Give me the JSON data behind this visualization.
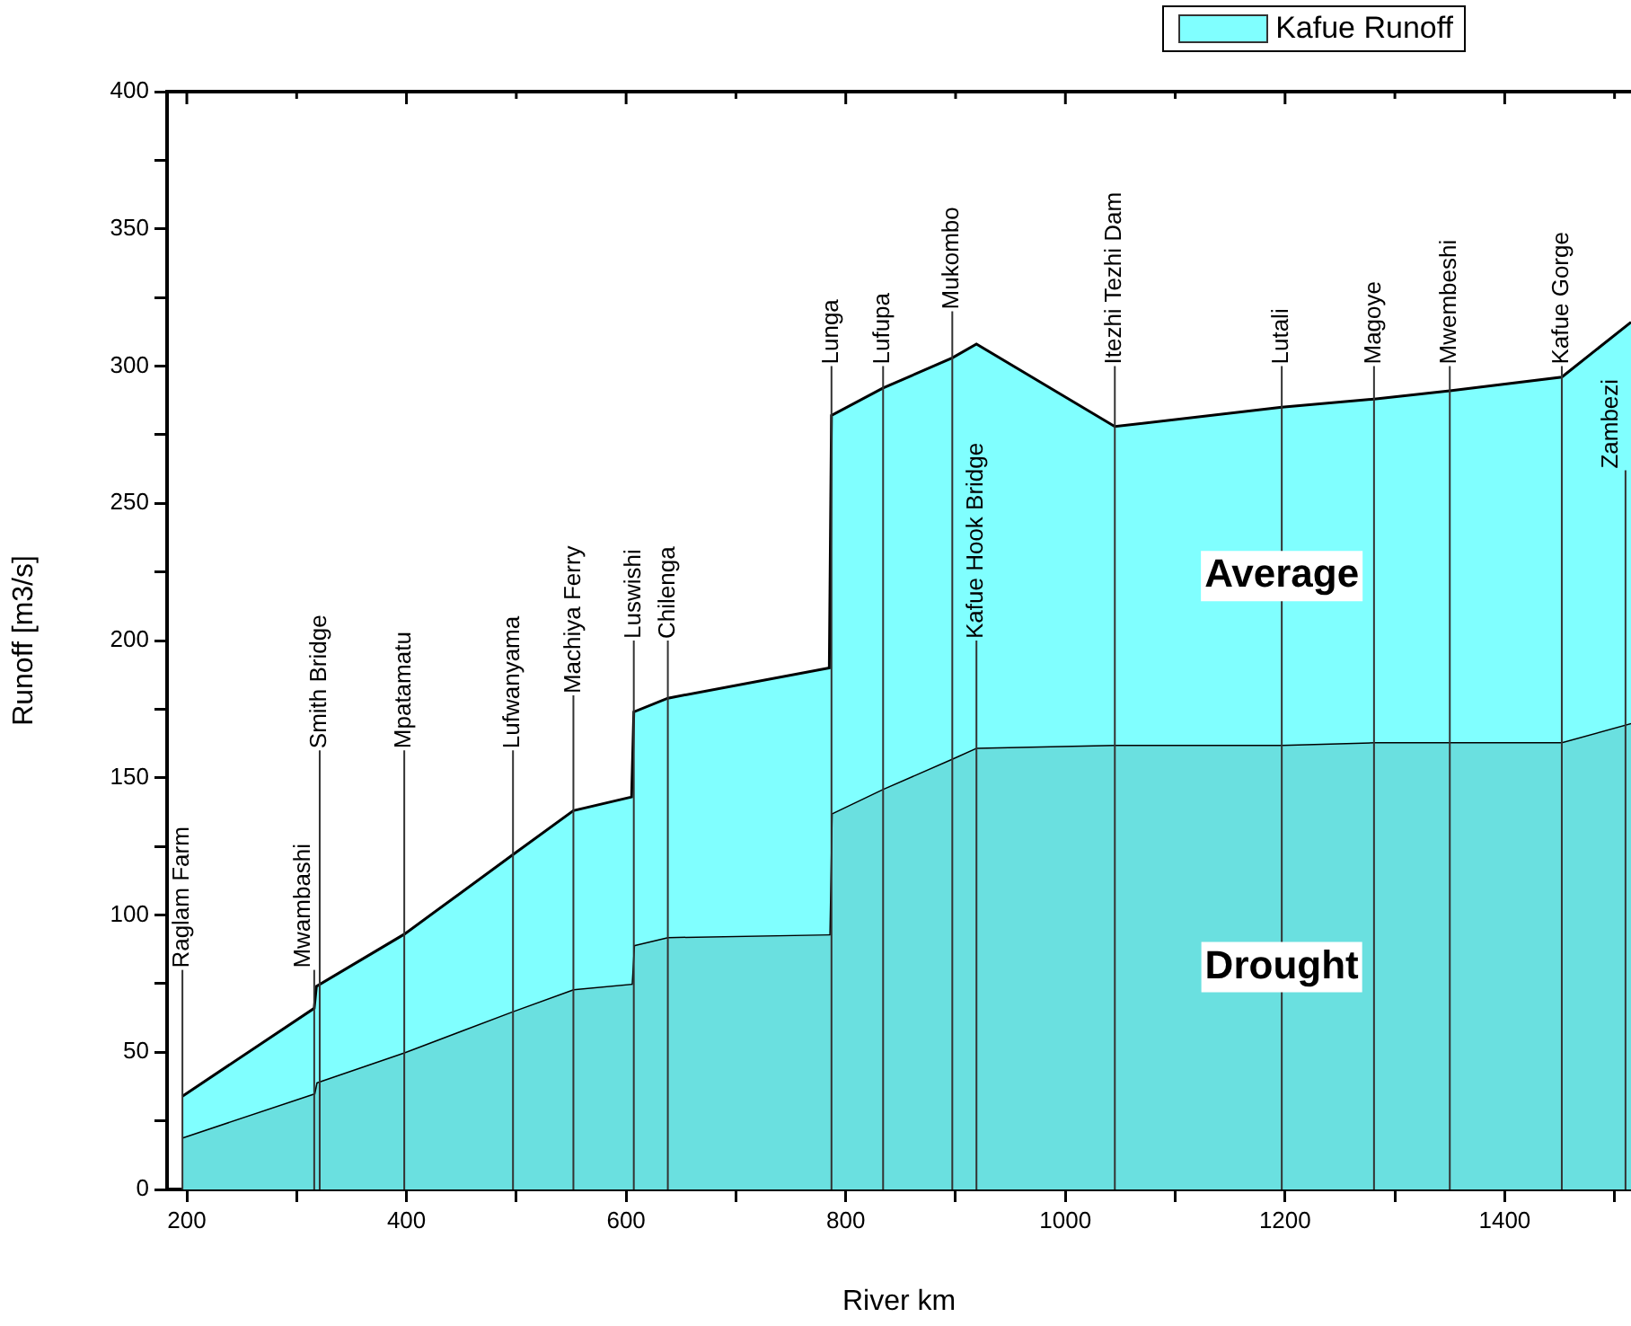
{
  "chart_data": {
    "type": "area",
    "xlabel": "River km",
    "ylabel": "Runoff [m3/s]",
    "legend_title": "Kafue Runoff",
    "legend": "top right",
    "x": [
      196,
      316,
      318,
      398,
      497,
      552,
      605,
      607,
      638,
      785,
      787,
      834,
      897,
      919,
      1045,
      1197,
      1281,
      1350,
      1452,
      1515
    ],
    "series": [
      {
        "name": "Average",
        "color": "#80ffff",
        "values": [
          34,
          66,
          74,
          93,
          122,
          138,
          143,
          174,
          179,
          190,
          282,
          292,
          303,
          308,
          278,
          285,
          288,
          291,
          296,
          316
        ]
      },
      {
        "name": "Drought",
        "color": "#6ae0e0",
        "values": [
          19,
          35,
          39,
          50,
          65,
          73,
          75,
          89,
          92,
          93,
          137,
          146,
          157,
          161,
          162,
          162,
          163,
          163,
          163,
          170
        ]
      }
    ],
    "xlim": [
      182,
      1515
    ],
    "xticks": [
      200,
      {
        "value": 300,
        "label": null
      },
      400,
      {
        "value": 500,
        "label": null
      },
      600,
      {
        "value": 700,
        "label": null
      },
      800,
      {
        "value": 900,
        "label": null
      },
      1000,
      {
        "value": 1100,
        "label": null
      },
      1200,
      {
        "value": 1300,
        "label": null
      },
      1400,
      {
        "value": 1500,
        "label": null
      }
    ],
    "ylim": [
      0,
      400
    ],
    "yticks": [
      0,
      {
        "value": 25,
        "label": null
      },
      50,
      {
        "value": 75,
        "label": null
      },
      100,
      {
        "value": 125,
        "label": null
      },
      150,
      {
        "value": 175,
        "label": null
      },
      200,
      {
        "value": 225,
        "label": null
      },
      250,
      {
        "value": 275,
        "label": null
      },
      300,
      {
        "value": 325,
        "label": null
      },
      350,
      {
        "value": 375,
        "label": null
      },
      400
    ],
    "ref_lines": [
      {
        "axis": "x",
        "value": 196,
        "label": "Raglam Farm"
      },
      {
        "axis": "x",
        "value": 316,
        "label": "Mwambashi"
      },
      {
        "axis": "x",
        "value": 321,
        "label": "Smith Bridge"
      },
      {
        "axis": "x",
        "value": 398,
        "label": "Mpatamatu"
      },
      {
        "axis": "x",
        "value": 497,
        "label": "Lufwanyama"
      },
      {
        "axis": "x",
        "value": 552,
        "label": "Machiya Ferry"
      },
      {
        "axis": "x",
        "value": 607,
        "label": "Luswishi"
      },
      {
        "axis": "x",
        "value": 638,
        "label": "Chilenga"
      },
      {
        "axis": "x",
        "value": 787,
        "label": "Lunga"
      },
      {
        "axis": "x",
        "value": 834,
        "label": "Lufupa"
      },
      {
        "axis": "x",
        "value": 897,
        "label": "Mukombo"
      },
      {
        "axis": "x",
        "value": 919,
        "label": "Kafue Hook Bridge"
      },
      {
        "axis": "x",
        "value": 1045,
        "label": "Itezhi Tezhi Dam"
      },
      {
        "axis": "x",
        "value": 1197,
        "label": "Lutali"
      },
      {
        "axis": "x",
        "value": 1281,
        "label": "Magoye"
      },
      {
        "axis": "x",
        "value": 1350,
        "label": "Mwembeshi"
      },
      {
        "axis": "x",
        "value": 1452,
        "label": "Kafue Gorge"
      },
      {
        "axis": "x",
        "value": 1510,
        "label": "Zambezi"
      }
    ]
  }
}
